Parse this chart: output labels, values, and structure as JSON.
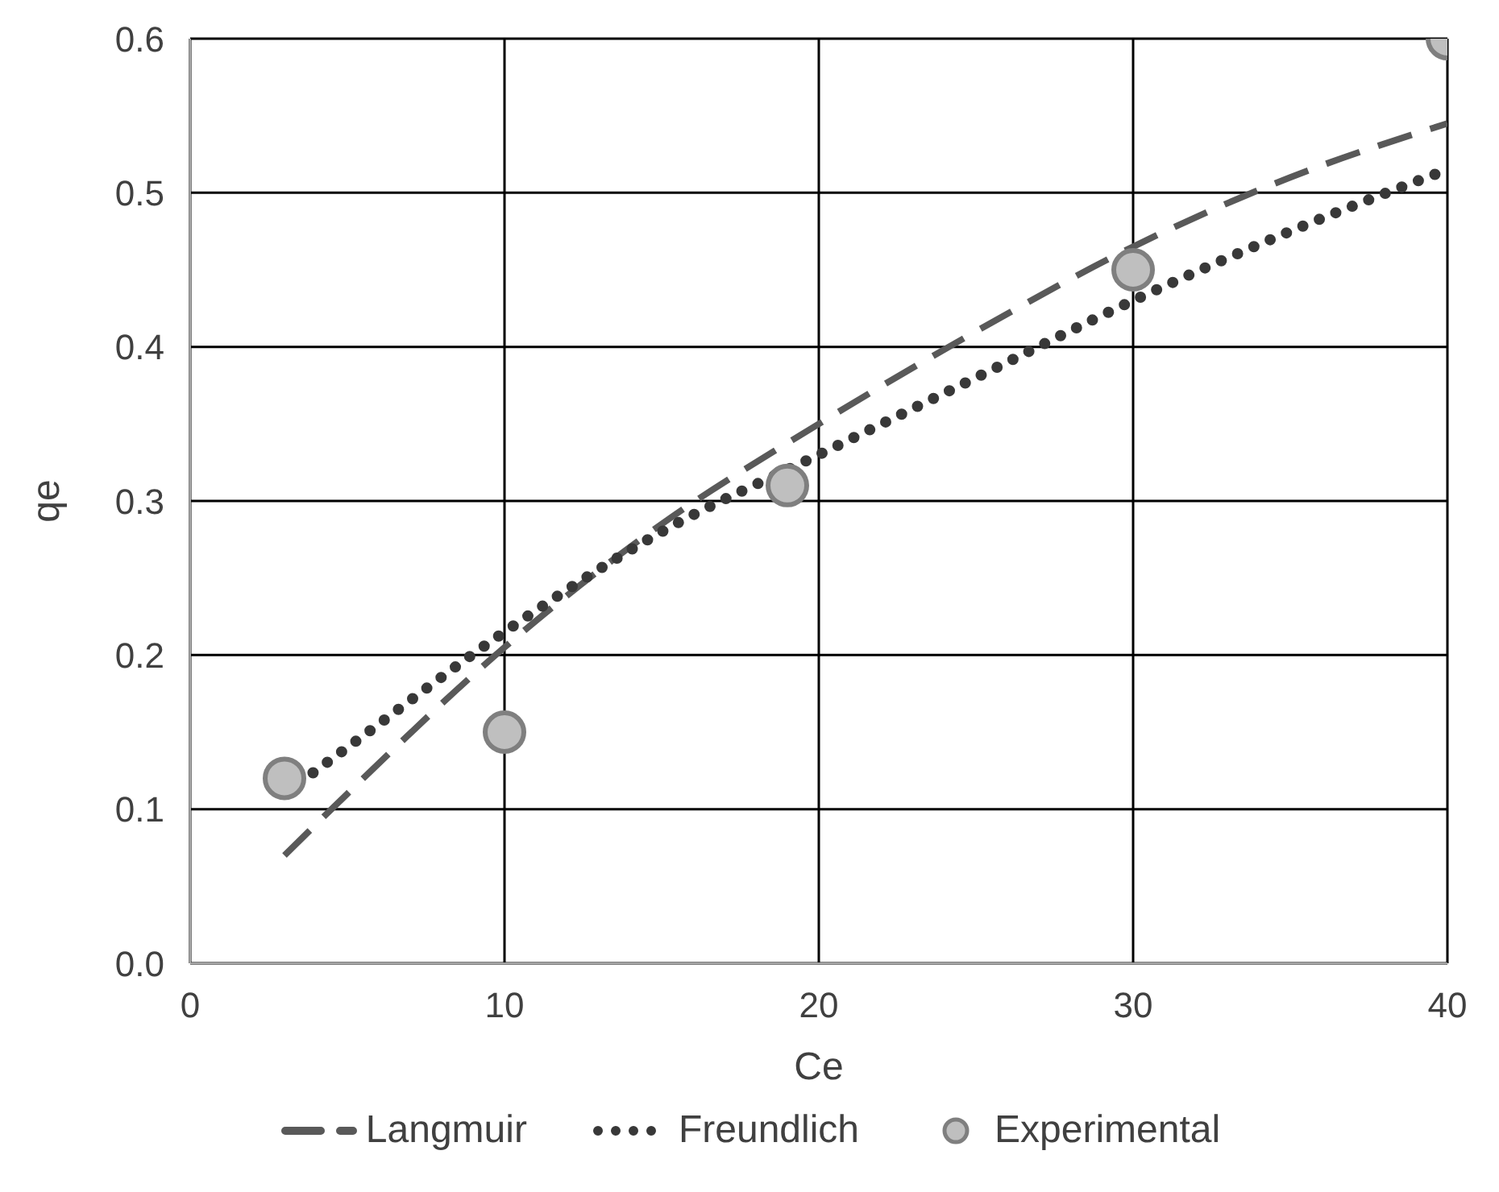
{
  "chart_data": {
    "type": "line",
    "xlabel": "Ce",
    "ylabel": "qe",
    "xlim": [
      0,
      40
    ],
    "xticks": [
      0,
      10,
      20,
      30,
      40
    ],
    "ylim": [
      0,
      0.6
    ],
    "yticks": [
      {
        "value": 0,
        "label": "0.0"
      },
      0.1,
      0.2,
      0.3,
      0.4,
      0.5,
      0.6
    ],
    "grid": true,
    "legend": "bottom",
    "series": [
      {
        "name": "Langmuir",
        "line_style": "dashed",
        "marker": "none",
        "color": "#595959",
        "x": [
          3,
          5,
          10,
          15,
          20,
          25,
          30,
          35,
          40
        ],
        "values": [
          0.07,
          0.11,
          0.205,
          0.285,
          0.35,
          0.41,
          0.465,
          0.51,
          0.545
        ]
      },
      {
        "name": "Freundlich",
        "line_style": "dotted",
        "marker": "none",
        "color": "#383838",
        "x": [
          3,
          5,
          10,
          15,
          20,
          25,
          30,
          35,
          40
        ],
        "values": [
          0.11,
          0.14,
          0.215,
          0.28,
          0.33,
          0.38,
          0.43,
          0.475,
          0.515
        ]
      },
      {
        "name": "Experimental",
        "type": "scatter",
        "marker": "circle",
        "color": "#bfbfbf",
        "x": [
          3,
          10,
          19,
          30,
          40
        ],
        "values": [
          0.12,
          0.15,
          0.31,
          0.45,
          0.6
        ]
      }
    ]
  }
}
